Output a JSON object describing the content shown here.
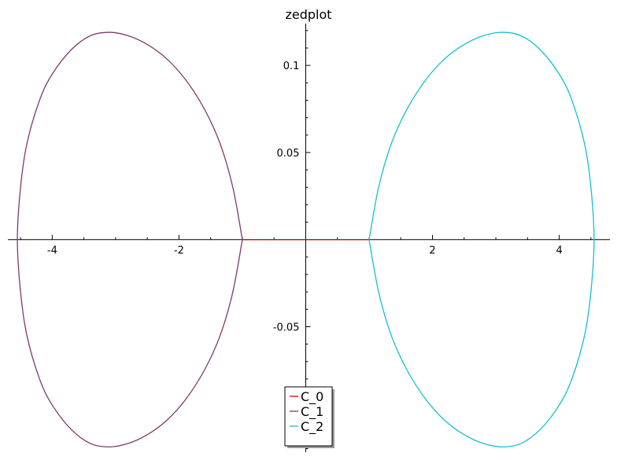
{
  "chart_data": {
    "type": "line",
    "title": "zedplot",
    "xlabel": "",
    "ylabel": "",
    "xlim": [
      -4.7,
      4.8
    ],
    "ylim": [
      -0.122,
      0.124
    ],
    "x_ticks": [
      {
        "value": -4,
        "label": "-4"
      },
      {
        "value": -2,
        "label": "-2"
      },
      {
        "value": 2,
        "label": "2"
      },
      {
        "value": 4,
        "label": "4"
      }
    ],
    "y_ticks": [
      {
        "value": 0.1,
        "label": "0.1"
      },
      {
        "value": 0.05,
        "label": "0.05"
      },
      {
        "value": -0.05,
        "label": "-0.05"
      }
    ],
    "grid": false,
    "legend": {
      "placement": "bottom-center"
    },
    "series": [
      {
        "name": "C_0",
        "color": "#e00000",
        "points": [
          [
            -1.0,
            0.0
          ],
          [
            1.0,
            0.0
          ]
        ]
      },
      {
        "name": "C_1",
        "color": "#7f3a6f",
        "points": [
          [
            -1.0,
            0.0
          ],
          [
            -1.15,
            0.03
          ],
          [
            -1.35,
            0.055
          ],
          [
            -1.6,
            0.075
          ],
          [
            -1.9,
            0.092
          ],
          [
            -2.2,
            0.104
          ],
          [
            -2.5,
            0.112
          ],
          [
            -2.8,
            0.117
          ],
          [
            -3.1,
            0.119
          ],
          [
            -3.4,
            0.117
          ],
          [
            -3.7,
            0.109
          ],
          [
            -4.0,
            0.095
          ],
          [
            -4.2,
            0.08
          ],
          [
            -4.4,
            0.055
          ],
          [
            -4.5,
            0.03
          ],
          [
            -4.55,
            0.0
          ],
          [
            -4.5,
            -0.03
          ],
          [
            -4.4,
            -0.055
          ],
          [
            -4.2,
            -0.08
          ],
          [
            -4.0,
            -0.095
          ],
          [
            -3.7,
            -0.109
          ],
          [
            -3.4,
            -0.117
          ],
          [
            -3.1,
            -0.119
          ],
          [
            -2.8,
            -0.117
          ],
          [
            -2.5,
            -0.112
          ],
          [
            -2.2,
            -0.104
          ],
          [
            -1.9,
            -0.092
          ],
          [
            -1.6,
            -0.075
          ],
          [
            -1.35,
            -0.055
          ],
          [
            -1.15,
            -0.03
          ],
          [
            -1.0,
            0.0
          ]
        ]
      },
      {
        "name": "C_2",
        "color": "#17becf",
        "points": [
          [
            1.0,
            0.0
          ],
          [
            1.15,
            0.03
          ],
          [
            1.35,
            0.055
          ],
          [
            1.6,
            0.075
          ],
          [
            1.9,
            0.092
          ],
          [
            2.2,
            0.104
          ],
          [
            2.5,
            0.112
          ],
          [
            2.8,
            0.117
          ],
          [
            3.1,
            0.119
          ],
          [
            3.4,
            0.117
          ],
          [
            3.7,
            0.109
          ],
          [
            4.0,
            0.095
          ],
          [
            4.2,
            0.08
          ],
          [
            4.4,
            0.055
          ],
          [
            4.5,
            0.03
          ],
          [
            4.55,
            0.0
          ],
          [
            4.5,
            -0.03
          ],
          [
            4.4,
            -0.055
          ],
          [
            4.2,
            -0.08
          ],
          [
            4.0,
            -0.095
          ],
          [
            3.7,
            -0.109
          ],
          [
            3.4,
            -0.117
          ],
          [
            3.1,
            -0.119
          ],
          [
            2.8,
            -0.117
          ],
          [
            2.5,
            -0.112
          ],
          [
            2.2,
            -0.104
          ],
          [
            1.9,
            -0.092
          ],
          [
            1.6,
            -0.075
          ],
          [
            1.35,
            -0.055
          ],
          [
            1.15,
            -0.03
          ],
          [
            1.0,
            0.0
          ]
        ]
      }
    ]
  }
}
